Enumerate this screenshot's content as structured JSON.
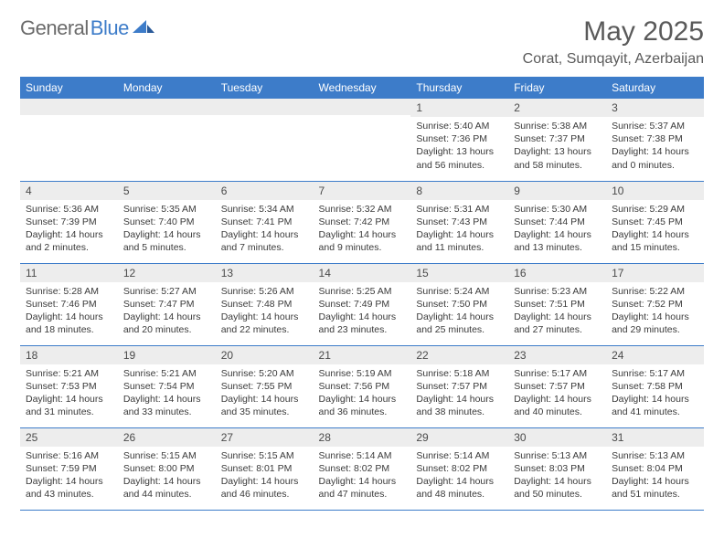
{
  "logo": {
    "text_general": "General",
    "text_blue": "Blue"
  },
  "title": "May 2025",
  "location": "Corat, Sumqayit, Azerbaijan",
  "colors": {
    "header_bg": "#3d7cc9",
    "header_text": "#ffffff",
    "band_bg": "#ededed",
    "rule": "#3d7cc9",
    "body_text": "#3a3a3a",
    "title_text": "#5a5a5a"
  },
  "day_headers": [
    "Sunday",
    "Monday",
    "Tuesday",
    "Wednesday",
    "Thursday",
    "Friday",
    "Saturday"
  ],
  "weeks": [
    [
      {
        "n": "",
        "sr": "",
        "ss": "",
        "dl": ""
      },
      {
        "n": "",
        "sr": "",
        "ss": "",
        "dl": ""
      },
      {
        "n": "",
        "sr": "",
        "ss": "",
        "dl": ""
      },
      {
        "n": "",
        "sr": "",
        "ss": "",
        "dl": ""
      },
      {
        "n": "1",
        "sr": "Sunrise: 5:40 AM",
        "ss": "Sunset: 7:36 PM",
        "dl": "Daylight: 13 hours and 56 minutes."
      },
      {
        "n": "2",
        "sr": "Sunrise: 5:38 AM",
        "ss": "Sunset: 7:37 PM",
        "dl": "Daylight: 13 hours and 58 minutes."
      },
      {
        "n": "3",
        "sr": "Sunrise: 5:37 AM",
        "ss": "Sunset: 7:38 PM",
        "dl": "Daylight: 14 hours and 0 minutes."
      }
    ],
    [
      {
        "n": "4",
        "sr": "Sunrise: 5:36 AM",
        "ss": "Sunset: 7:39 PM",
        "dl": "Daylight: 14 hours and 2 minutes."
      },
      {
        "n": "5",
        "sr": "Sunrise: 5:35 AM",
        "ss": "Sunset: 7:40 PM",
        "dl": "Daylight: 14 hours and 5 minutes."
      },
      {
        "n": "6",
        "sr": "Sunrise: 5:34 AM",
        "ss": "Sunset: 7:41 PM",
        "dl": "Daylight: 14 hours and 7 minutes."
      },
      {
        "n": "7",
        "sr": "Sunrise: 5:32 AM",
        "ss": "Sunset: 7:42 PM",
        "dl": "Daylight: 14 hours and 9 minutes."
      },
      {
        "n": "8",
        "sr": "Sunrise: 5:31 AM",
        "ss": "Sunset: 7:43 PM",
        "dl": "Daylight: 14 hours and 11 minutes."
      },
      {
        "n": "9",
        "sr": "Sunrise: 5:30 AM",
        "ss": "Sunset: 7:44 PM",
        "dl": "Daylight: 14 hours and 13 minutes."
      },
      {
        "n": "10",
        "sr": "Sunrise: 5:29 AM",
        "ss": "Sunset: 7:45 PM",
        "dl": "Daylight: 14 hours and 15 minutes."
      }
    ],
    [
      {
        "n": "11",
        "sr": "Sunrise: 5:28 AM",
        "ss": "Sunset: 7:46 PM",
        "dl": "Daylight: 14 hours and 18 minutes."
      },
      {
        "n": "12",
        "sr": "Sunrise: 5:27 AM",
        "ss": "Sunset: 7:47 PM",
        "dl": "Daylight: 14 hours and 20 minutes."
      },
      {
        "n": "13",
        "sr": "Sunrise: 5:26 AM",
        "ss": "Sunset: 7:48 PM",
        "dl": "Daylight: 14 hours and 22 minutes."
      },
      {
        "n": "14",
        "sr": "Sunrise: 5:25 AM",
        "ss": "Sunset: 7:49 PM",
        "dl": "Daylight: 14 hours and 23 minutes."
      },
      {
        "n": "15",
        "sr": "Sunrise: 5:24 AM",
        "ss": "Sunset: 7:50 PM",
        "dl": "Daylight: 14 hours and 25 minutes."
      },
      {
        "n": "16",
        "sr": "Sunrise: 5:23 AM",
        "ss": "Sunset: 7:51 PM",
        "dl": "Daylight: 14 hours and 27 minutes."
      },
      {
        "n": "17",
        "sr": "Sunrise: 5:22 AM",
        "ss": "Sunset: 7:52 PM",
        "dl": "Daylight: 14 hours and 29 minutes."
      }
    ],
    [
      {
        "n": "18",
        "sr": "Sunrise: 5:21 AM",
        "ss": "Sunset: 7:53 PM",
        "dl": "Daylight: 14 hours and 31 minutes."
      },
      {
        "n": "19",
        "sr": "Sunrise: 5:21 AM",
        "ss": "Sunset: 7:54 PM",
        "dl": "Daylight: 14 hours and 33 minutes."
      },
      {
        "n": "20",
        "sr": "Sunrise: 5:20 AM",
        "ss": "Sunset: 7:55 PM",
        "dl": "Daylight: 14 hours and 35 minutes."
      },
      {
        "n": "21",
        "sr": "Sunrise: 5:19 AM",
        "ss": "Sunset: 7:56 PM",
        "dl": "Daylight: 14 hours and 36 minutes."
      },
      {
        "n": "22",
        "sr": "Sunrise: 5:18 AM",
        "ss": "Sunset: 7:57 PM",
        "dl": "Daylight: 14 hours and 38 minutes."
      },
      {
        "n": "23",
        "sr": "Sunrise: 5:17 AM",
        "ss": "Sunset: 7:57 PM",
        "dl": "Daylight: 14 hours and 40 minutes."
      },
      {
        "n": "24",
        "sr": "Sunrise: 5:17 AM",
        "ss": "Sunset: 7:58 PM",
        "dl": "Daylight: 14 hours and 41 minutes."
      }
    ],
    [
      {
        "n": "25",
        "sr": "Sunrise: 5:16 AM",
        "ss": "Sunset: 7:59 PM",
        "dl": "Daylight: 14 hours and 43 minutes."
      },
      {
        "n": "26",
        "sr": "Sunrise: 5:15 AM",
        "ss": "Sunset: 8:00 PM",
        "dl": "Daylight: 14 hours and 44 minutes."
      },
      {
        "n": "27",
        "sr": "Sunrise: 5:15 AM",
        "ss": "Sunset: 8:01 PM",
        "dl": "Daylight: 14 hours and 46 minutes."
      },
      {
        "n": "28",
        "sr": "Sunrise: 5:14 AM",
        "ss": "Sunset: 8:02 PM",
        "dl": "Daylight: 14 hours and 47 minutes."
      },
      {
        "n": "29",
        "sr": "Sunrise: 5:14 AM",
        "ss": "Sunset: 8:02 PM",
        "dl": "Daylight: 14 hours and 48 minutes."
      },
      {
        "n": "30",
        "sr": "Sunrise: 5:13 AM",
        "ss": "Sunset: 8:03 PM",
        "dl": "Daylight: 14 hours and 50 minutes."
      },
      {
        "n": "31",
        "sr": "Sunrise: 5:13 AM",
        "ss": "Sunset: 8:04 PM",
        "dl": "Daylight: 14 hours and 51 minutes."
      }
    ]
  ]
}
